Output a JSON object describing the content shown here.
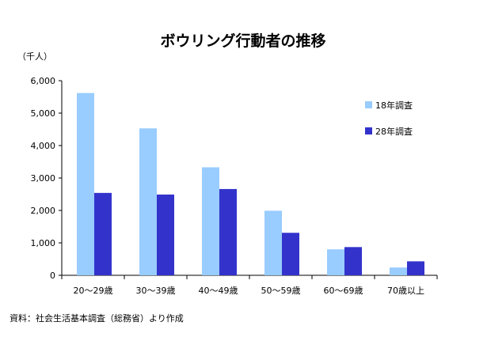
{
  "chart_data": {
    "type": "bar",
    "title": "ボウリング行動者の推移",
    "unit_label": "（千人）",
    "categories": [
      "20～29歳",
      "30～39歳",
      "40～49歳",
      "50～59歳",
      "60～69歳",
      "70歳以上"
    ],
    "series": [
      {
        "name": "18年調査",
        "color": "#99ccff",
        "values": [
          5620,
          4530,
          3330,
          1990,
          800,
          240
        ]
      },
      {
        "name": "28年調査",
        "color": "#3333cc",
        "values": [
          2540,
          2490,
          2660,
          1310,
          870,
          430
        ]
      }
    ],
    "ylim": [
      0,
      6000
    ],
    "yticks": [
      "0",
      "1,000",
      "2,000",
      "3,000",
      "4,000",
      "5,000",
      "6,000"
    ],
    "grid": false,
    "legend": "top-right"
  },
  "source": "資料：社会生活基本調査（総務省）より作成"
}
